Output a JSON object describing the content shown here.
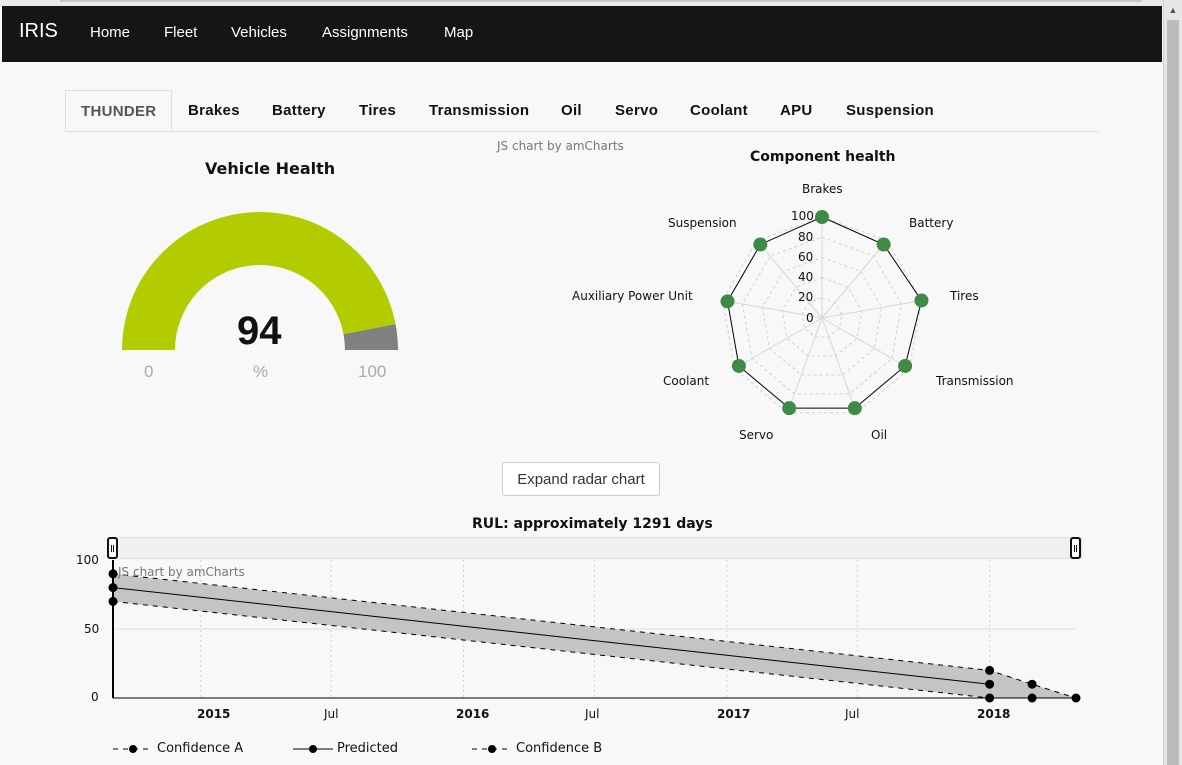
{
  "navbar": {
    "brand": "IRIS",
    "links": [
      "Home",
      "Fleet",
      "Vehicles",
      "Assignments",
      "Map"
    ]
  },
  "tabs": [
    {
      "label": "THUNDER",
      "active": true
    },
    {
      "label": "Brakes"
    },
    {
      "label": "Battery"
    },
    {
      "label": "Tires"
    },
    {
      "label": "Transmission"
    },
    {
      "label": "Oil"
    },
    {
      "label": "Servo"
    },
    {
      "label": "Coolant"
    },
    {
      "label": "APU"
    },
    {
      "label": "Suspension"
    }
  ],
  "credits": {
    "radar": "JS chart by amCharts",
    "rul": "JS chart by amCharts"
  },
  "gauge": {
    "title": "Vehicle Health",
    "value": "94",
    "min_label": "0",
    "unit_label": "%",
    "max_label": "100",
    "fill_fraction": 0.94,
    "fill_color": "#b2cc00",
    "rest_color": "#808080"
  },
  "radar": {
    "title": "Component health",
    "ticks": [
      "100",
      "80",
      "60",
      "40",
      "20",
      "0"
    ],
    "point_color": "#3f8a47"
  },
  "expand_button": "Expand radar chart",
  "rul": {
    "title": "RUL: approximately 1291 days",
    "y_ticks": [
      "100",
      "50",
      "0"
    ],
    "x_ticks": [
      {
        "label": "2015",
        "bold": true
      },
      {
        "label": "Jul",
        "bold": false
      },
      {
        "label": "2016",
        "bold": true
      },
      {
        "label": "Jul",
        "bold": false
      },
      {
        "label": "2017",
        "bold": true
      },
      {
        "label": "Jul",
        "bold": false
      },
      {
        "label": "2018",
        "bold": true
      }
    ],
    "legend": [
      "Confidence A",
      "Predicted",
      "Confidence B"
    ]
  },
  "chart_data": [
    {
      "type": "gauge",
      "title": "Vehicle Health",
      "value": 94,
      "min": 0,
      "max": 100,
      "unit": "%"
    },
    {
      "type": "radar",
      "title": "Component health",
      "categories": [
        "Brakes",
        "Battery",
        "Tires",
        "Transmission",
        "Oil",
        "Servo",
        "Coolant",
        "Auxiliary Power Unit",
        "Suspension"
      ],
      "values": [
        100,
        95,
        100,
        95,
        95,
        95,
        95,
        95,
        95
      ],
      "ylim": [
        0,
        100
      ]
    },
    {
      "type": "line",
      "title": "RUL: approximately 1291 days",
      "ylim": [
        0,
        100
      ],
      "series": [
        {
          "name": "Confidence A",
          "x": [
            "2014-09",
            "2018-01",
            "2018-03"
          ],
          "y": [
            70,
            0,
            0
          ]
        },
        {
          "name": "Predicted",
          "x": [
            "2014-09",
            "2018-01"
          ],
          "y": [
            80,
            10
          ]
        },
        {
          "name": "Confidence B",
          "x": [
            "2014-09",
            "2018-01",
            "2018-03",
            "2018-05"
          ],
          "y": [
            90,
            20,
            10,
            0
          ]
        }
      ]
    }
  ]
}
